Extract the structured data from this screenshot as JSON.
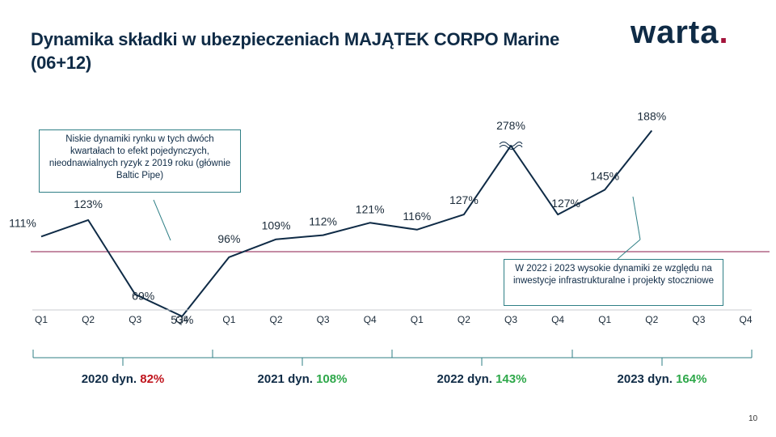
{
  "title": "Dynamika składki w ubezpieczeniach MAJĄTEK CORPO Marine (06+12)",
  "logo": {
    "text": "warta",
    "dot": "."
  },
  "page_number": "10",
  "colors": {
    "line": "#0f2b46",
    "reference_line": "#8b1a4a",
    "negative": "#c0141d",
    "positive": "#2ea84a",
    "note_border": "#2f7f86"
  },
  "notes": {
    "note1": "Niskie dynamiki rynku w tych dwóch kwartałach  to efekt pojedynczych, nieodnawialnych  ryzyk z 2019 roku (głównie Baltic Pipe)",
    "note2": "W 2022 i 2023  wysokie dynamiki ze względu na inwestycje infrastrukturalne   i projekty stoczniowe"
  },
  "chart_data": {
    "type": "line",
    "categories": [
      "Q1",
      "Q2",
      "Q3",
      "Q4",
      "Q1",
      "Q2",
      "Q3",
      "Q4",
      "Q1",
      "Q2",
      "Q3",
      "Q4",
      "Q1",
      "Q2",
      "Q3",
      "Q4"
    ],
    "values": [
      111,
      123,
      69,
      53,
      96,
      109,
      112,
      121,
      116,
      127,
      278,
      127,
      145,
      188,
      null,
      null
    ],
    "value_labels": [
      "111%",
      "123%",
      "69%",
      "53%",
      "96%",
      "109%",
      "112%",
      "121%",
      "116%",
      "127%",
      "278%",
      "127%",
      "145%",
      "188%",
      "",
      ""
    ],
    "reference_line": 100,
    "axis_break_at": "278%",
    "years": [
      {
        "label": "2020 dyn.",
        "value": "82%",
        "status": "negative"
      },
      {
        "label": "2021 dyn.",
        "value": "108%",
        "status": "positive"
      },
      {
        "label": "2022 dyn.",
        "value": "143%",
        "status": "positive"
      },
      {
        "label": "2023 dyn.",
        "value": "164%",
        "status": "positive"
      }
    ]
  }
}
